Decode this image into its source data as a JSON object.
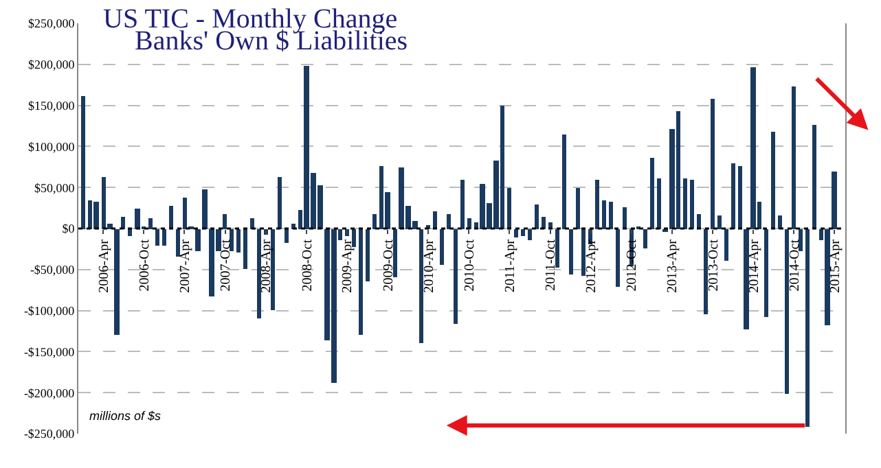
{
  "chart_data": {
    "type": "bar",
    "title": "US TIC - Monthly Change",
    "subtitle": "Banks' Own $ Liabilities",
    "annotations": [
      "millions of $s"
    ],
    "x": [
      "2006-01",
      "2006-02",
      "2006-03",
      "2006-04",
      "2006-05",
      "2006-06",
      "2006-07",
      "2006-08",
      "2006-09",
      "2006-10",
      "2006-11",
      "2006-12",
      "2007-01",
      "2007-02",
      "2007-03",
      "2007-04",
      "2007-05",
      "2007-06",
      "2007-07",
      "2007-08",
      "2007-09",
      "2007-10",
      "2007-11",
      "2007-12",
      "2008-01",
      "2008-02",
      "2008-03",
      "2008-04",
      "2008-05",
      "2008-06",
      "2008-07",
      "2008-08",
      "2008-09",
      "2008-10",
      "2008-11",
      "2008-12",
      "2009-01",
      "2009-02",
      "2009-03",
      "2009-04",
      "2009-05",
      "2009-06",
      "2009-07",
      "2009-08",
      "2009-09",
      "2009-10",
      "2009-11",
      "2009-12",
      "2010-01",
      "2010-02",
      "2010-03",
      "2010-04",
      "2010-05",
      "2010-06",
      "2010-07",
      "2010-08",
      "2010-09",
      "2010-10",
      "2010-11",
      "2010-12",
      "2011-01",
      "2011-02",
      "2011-03",
      "2011-04",
      "2011-05",
      "2011-06",
      "2011-07",
      "2011-08",
      "2011-09",
      "2011-10",
      "2011-11",
      "2011-12",
      "2012-01",
      "2012-02",
      "2012-03",
      "2012-04",
      "2012-05",
      "2012-06",
      "2012-07",
      "2012-08",
      "2012-09",
      "2012-10",
      "2012-11",
      "2012-12",
      "2013-01",
      "2013-02",
      "2013-03",
      "2013-04",
      "2013-05",
      "2013-06",
      "2013-07",
      "2013-08",
      "2013-09",
      "2013-10",
      "2013-11",
      "2013-12",
      "2014-01",
      "2014-02",
      "2014-03",
      "2014-04",
      "2014-05",
      "2014-06",
      "2014-07",
      "2014-08",
      "2014-09",
      "2014-10",
      "2014-11",
      "2014-12",
      "2015-01",
      "2015-02",
      "2015-03",
      "2015-04"
    ],
    "series": [
      {
        "color": "#1b3a5f",
        "values": [
          162000,
          35000,
          32000,
          63000,
          6000,
          -129000,
          15000,
          -9000,
          25000,
          3000,
          12000,
          -21000,
          -21000,
          27000,
          -34000,
          37000,
          3000,
          -28000,
          48000,
          -83000,
          -27000,
          18000,
          -27000,
          -30000,
          -50000,
          13000,
          -110000,
          -8000,
          -100000,
          63000,
          -18000,
          6000,
          22000,
          199000,
          68000,
          52000,
          -136000,
          -188000,
          -14000,
          -10000,
          -22000,
          -129000,
          -65000,
          18000,
          76000,
          44000,
          -59000,
          74000,
          28000,
          10000,
          -139000,
          5000,
          21000,
          -45000,
          17000,
          -117000,
          59000,
          12000,
          8000,
          54000,
          31000,
          83000,
          150000,
          50000,
          -11000,
          -10000,
          -15000,
          30000,
          14000,
          8000,
          -47000,
          115000,
          -56000,
          50000,
          -58000,
          -20000,
          59000,
          34000,
          32000,
          -71000,
          26000,
          -46000,
          3000,
          -24000,
          86000,
          61000,
          -5000,
          122000,
          143000,
          61000,
          59000,
          17000,
          -105000,
          158000,
          16000,
          -40000,
          79000,
          76000,
          -123000,
          196000,
          32000,
          -108000,
          118000,
          16000,
          -201000,
          173000,
          -28000,
          -242000,
          127000,
          -14000,
          -118000,
          70000
        ]
      }
    ],
    "xlim": [
      "2005-12-10",
      "2015-05-20"
    ],
    "xticks": [
      {
        "value": "2006-04",
        "label": "2006-Apr"
      },
      {
        "value": "2006-10",
        "label": "2006-Oct"
      },
      {
        "value": "2007-04",
        "label": "2007-Apr"
      },
      {
        "value": "2007-10",
        "label": "2007-Oct"
      },
      {
        "value": "2008-04",
        "label": "2008-Apr"
      },
      {
        "value": "2008-10",
        "label": "2008-Oct"
      },
      {
        "value": "2009-04",
        "label": "2009-Apr"
      },
      {
        "value": "2009-10",
        "label": "2009-Oct"
      },
      {
        "value": "2010-04",
        "label": "2010-Apr"
      },
      {
        "value": "2010-10",
        "label": "2010-Oct"
      },
      {
        "value": "2011-04",
        "label": "2011-Apr"
      },
      {
        "value": "2011-10",
        "label": "2011-Oct"
      },
      {
        "value": "2012-04",
        "label": "2012-Apr"
      },
      {
        "value": "2012-10",
        "label": "2012-Oct"
      },
      {
        "value": "2013-04",
        "label": "2013-Apr"
      },
      {
        "value": "2013-10",
        "label": "2013-Oct"
      },
      {
        "value": "2014-04",
        "label": "2014-Apr"
      },
      {
        "value": "2014-10",
        "label": "2014-Oct"
      },
      {
        "value": "2015-04",
        "label": "2015-Apr"
      }
    ],
    "ylim": [
      -250000,
      250000
    ],
    "yticks": [
      {
        "value": 250000,
        "label": "$250,000"
      },
      {
        "value": 200000,
        "label": "$200,000"
      },
      {
        "value": 150000,
        "label": "$150,000"
      },
      {
        "value": 100000,
        "label": "$100,000"
      },
      {
        "value": 50000,
        "label": "$50,000"
      },
      {
        "value": 0,
        "label": "$0"
      },
      {
        "value": -50000,
        "label": "-$50,000"
      },
      {
        "value": -100000,
        "label": "-$100,000"
      },
      {
        "value": -150000,
        "label": "-$150,000"
      },
      {
        "value": -200000,
        "label": "-$200,000"
      },
      {
        "value": -250000,
        "label": "-$250,000"
      }
    ],
    "ref_lines": [
      {
        "axis": "y",
        "value": 0,
        "color": "#000000",
        "line_style": "dotted"
      }
    ],
    "grid": "y"
  }
}
